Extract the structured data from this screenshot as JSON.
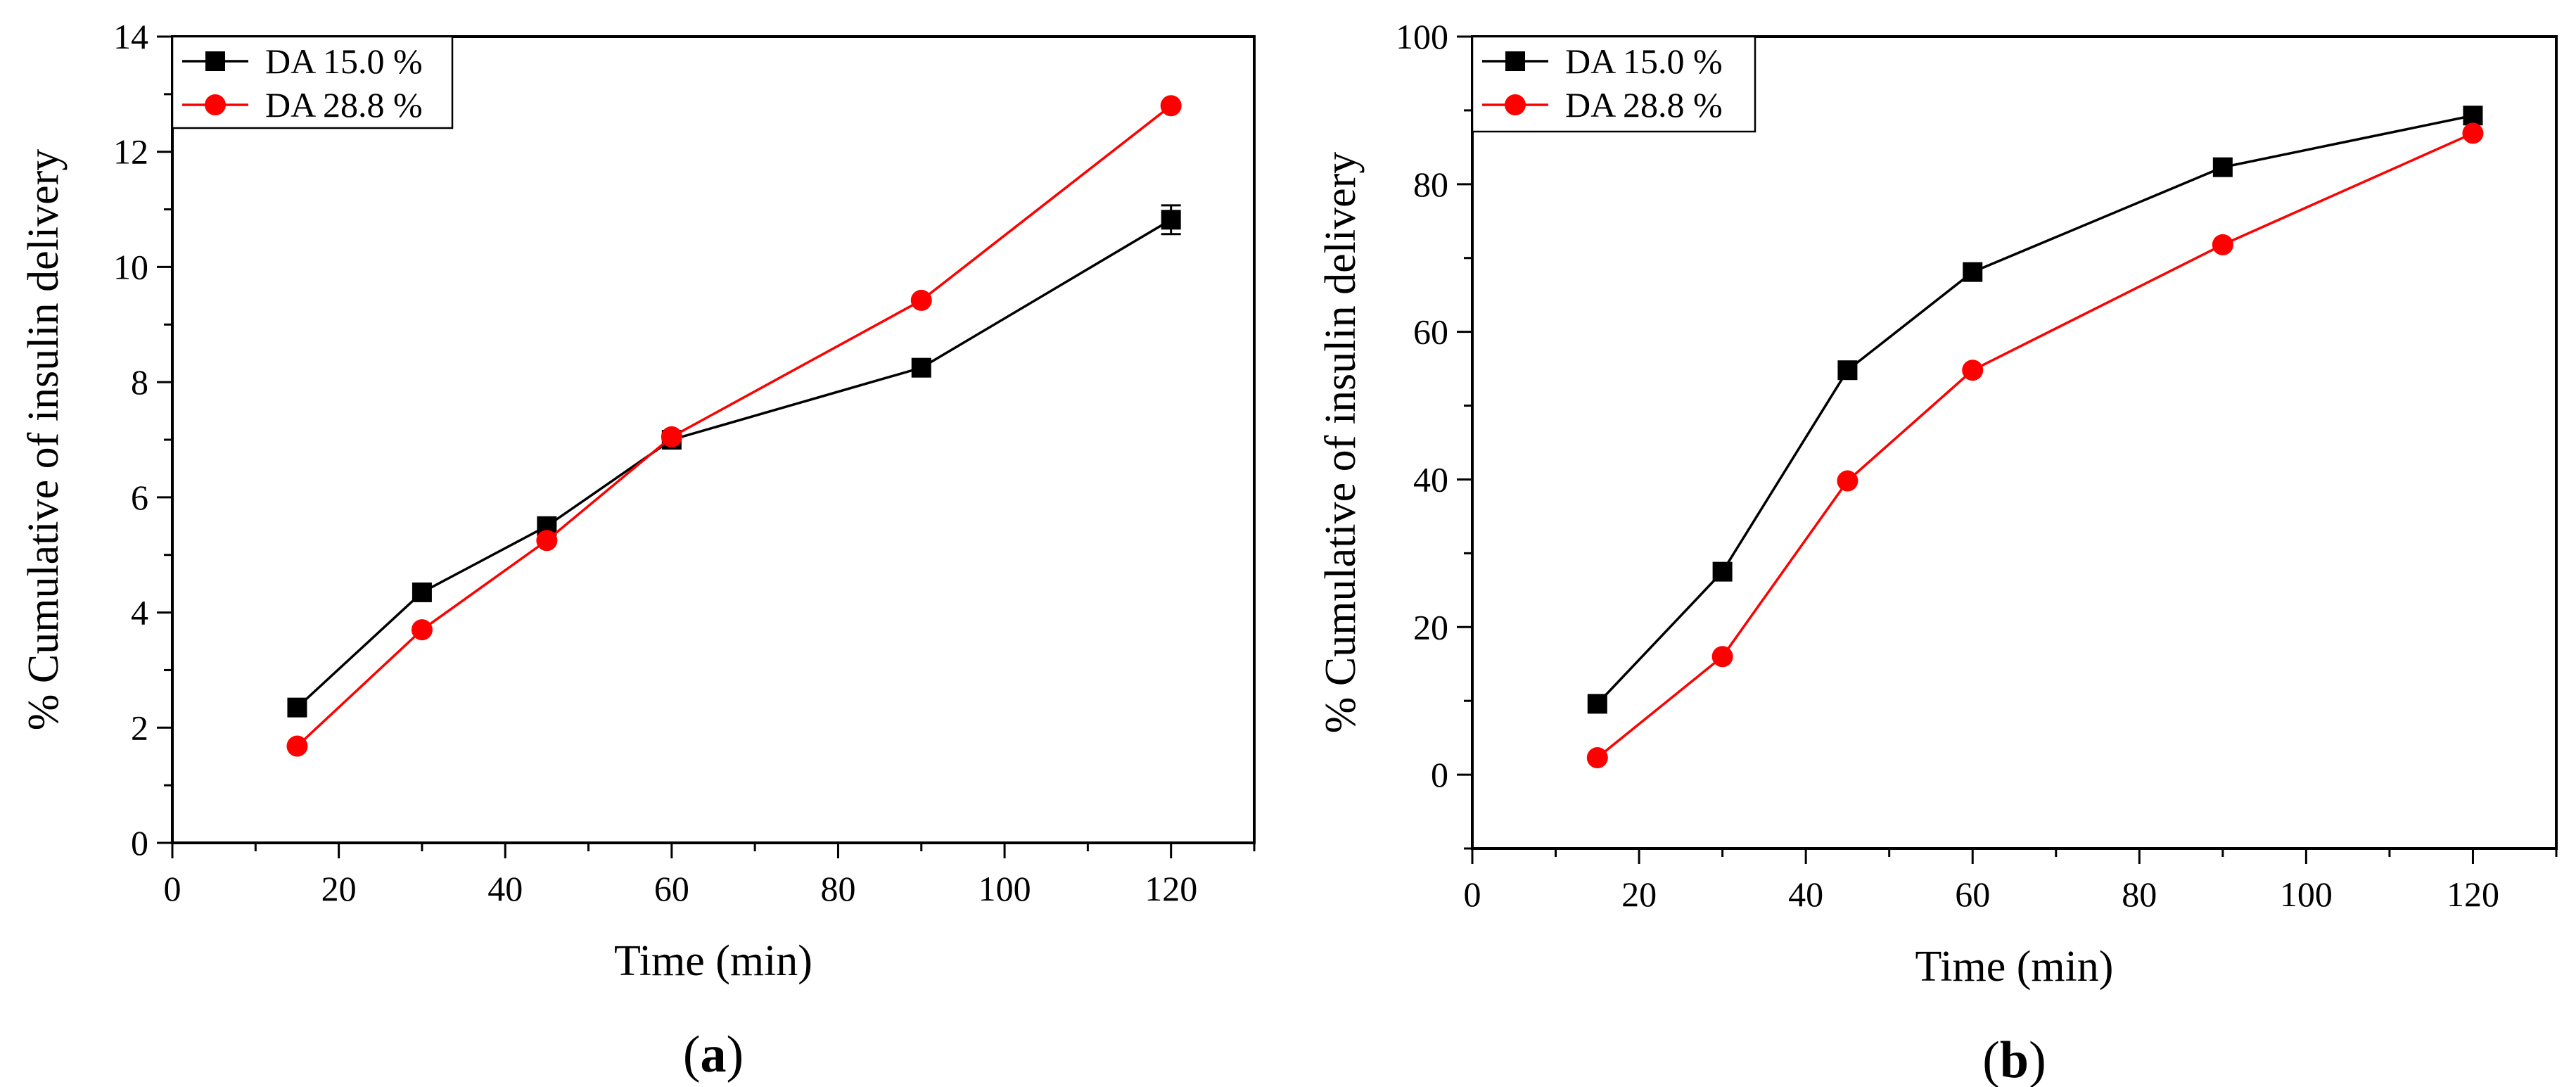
{
  "chart_data": [
    {
      "type": "line",
      "panel_label": "a",
      "xlabel": "Time (min)",
      "ylabel": "% Cumulative of insulin delivery",
      "xlim": [
        0,
        130
      ],
      "ylim": [
        0,
        14
      ],
      "xticks": [
        0,
        20,
        40,
        60,
        80,
        100,
        120
      ],
      "yticks": [
        0,
        2,
        4,
        6,
        8,
        10,
        12,
        14
      ],
      "legend_position": "top-left",
      "grid": false,
      "x": [
        15,
        30,
        45,
        60,
        90,
        120
      ],
      "series": [
        {
          "name": "DA 15.0 %",
          "color": "#000000",
          "marker": "square",
          "values": [
            2.35,
            4.35,
            5.5,
            7.0,
            8.25,
            10.82
          ],
          "error": [
            0,
            0,
            0,
            0,
            0,
            0.25
          ]
        },
        {
          "name": "DA 28.8 %",
          "color": "#ff0000",
          "marker": "circle",
          "values": [
            1.68,
            3.7,
            5.25,
            7.05,
            9.42,
            12.8
          ],
          "error": [
            0,
            0,
            0,
            0,
            0,
            0
          ]
        }
      ]
    },
    {
      "type": "line",
      "panel_label": "b",
      "xlabel": "Time (min)",
      "ylabel": "% Cumulative of insulin delivery",
      "xlim": [
        0,
        130
      ],
      "ylim": [
        -10,
        100
      ],
      "xticks": [
        0,
        20,
        40,
        60,
        80,
        100,
        120
      ],
      "yticks": [
        0,
        20,
        40,
        60,
        80,
        100
      ],
      "legend_position": "top-left",
      "grid": false,
      "x": [
        15,
        30,
        45,
        60,
        90,
        120
      ],
      "series": [
        {
          "name": "DA 15.0 %",
          "color": "#000000",
          "marker": "square",
          "values": [
            9.6,
            27.5,
            54.8,
            68.1,
            82.3,
            89.3
          ],
          "error": [
            0,
            0,
            0,
            0,
            0,
            0
          ]
        },
        {
          "name": "DA 28.8 %",
          "color": "#ff0000",
          "marker": "circle",
          "values": [
            2.3,
            16.0,
            39.8,
            54.8,
            71.8,
            86.9
          ],
          "error": [
            0,
            0,
            0,
            0,
            0,
            0
          ]
        }
      ]
    }
  ]
}
